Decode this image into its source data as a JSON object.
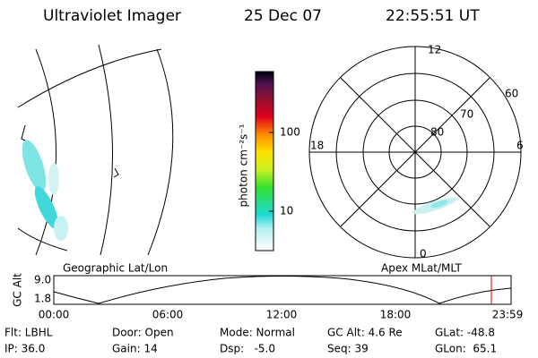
{
  "header": {
    "title": "Ultraviolet Imager",
    "date": "25 Dec 07",
    "time": "22:55:51 UT"
  },
  "colorbar": {
    "label": "photon cm⁻²s⁻¹",
    "ticks": [
      "100",
      "10"
    ]
  },
  "polar": {
    "top": "12",
    "left": "18",
    "right": "6",
    "bottom": "0",
    "rings": [
      "60",
      "70",
      "80"
    ]
  },
  "map_labels": {
    "geographic": "Geographic Lat/Lon",
    "apex": "Apex MLat/MLT"
  },
  "altitude": {
    "label": "GC Alt",
    "ticks": [
      "9.0",
      "1.8"
    ],
    "time_ticks": [
      "00:00",
      "06:00",
      "12:00",
      "18:00",
      "23:59"
    ]
  },
  "footer": {
    "rows": [
      [
        "Flt: LBHL",
        "Door: Open",
        "Mode: Normal",
        "GC Alt: 4.6 Re",
        "GLat: -48.8"
      ],
      [
        "IP: 36.0",
        "Gain: 14",
        "Dsp:   -5.0",
        "Seq: 39",
        "GLon:  65.1"
      ]
    ]
  }
}
